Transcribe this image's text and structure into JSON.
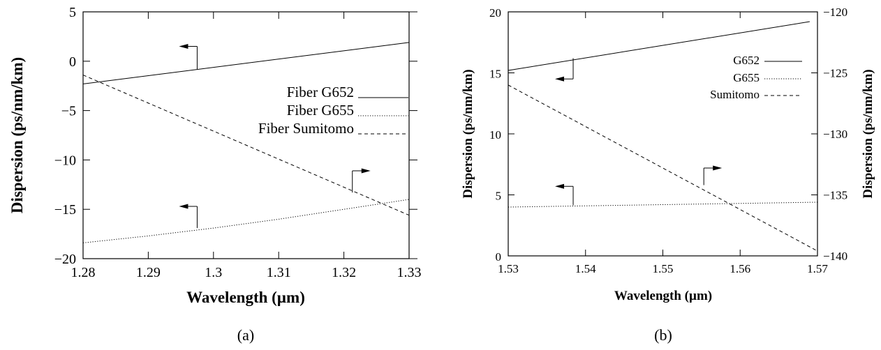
{
  "chart_data": [
    {
      "type": "line",
      "caption": "(a)",
      "xlabel": "Wavelength (µm)",
      "ylabel": "Dispersion (ps/nm/km)",
      "xlim": [
        1.28,
        1.33
      ],
      "ylim": [
        -20,
        5
      ],
      "xticks": [
        "1.28",
        "1.29",
        "1.3",
        "1.31",
        "1.32",
        "1.33"
      ],
      "yticks": [
        "5",
        "0",
        "−5",
        "−10",
        "−15",
        "−20"
      ],
      "grid": false,
      "legend_position": "right",
      "series": [
        {
          "name": "Fiber G652",
          "style": "solid",
          "x": [
            1.28,
            1.33
          ],
          "y": [
            -2.3,
            1.9
          ]
        },
        {
          "name": "Fiber G655",
          "style": "dotted",
          "x": [
            1.28,
            1.29,
            1.3,
            1.31,
            1.32,
            1.33
          ],
          "y": [
            -18.4,
            -17.7,
            -16.9,
            -16.0,
            -15.0,
            -14.0
          ]
        },
        {
          "name": "Fiber Sumitomo",
          "style": "dashed",
          "x": [
            1.28,
            1.33
          ],
          "y": [
            -1.4,
            -15.6
          ]
        }
      ],
      "annotations": [
        {
          "type": "axis-arrow",
          "direction": "left",
          "x": 1.2975,
          "y": -0.8,
          "ty": 1.5
        },
        {
          "type": "axis-arrow",
          "direction": "left",
          "x": 1.2975,
          "y": -16.9,
          "ty": -14.7
        },
        {
          "type": "axis-arrow",
          "direction": "right",
          "x": 1.3213,
          "y": -13.3,
          "ty": -11.1
        }
      ]
    },
    {
      "type": "line",
      "caption": "(b)",
      "xlabel": "Wavelength (µm)",
      "ylabel": "Dispersion (ps/nm/km)",
      "y2label": "Dispersion (ps/nm/km)",
      "xlim": [
        1.53,
        1.57
      ],
      "ylim": [
        0,
        20
      ],
      "y2lim": [
        -140,
        -120
      ],
      "xticks": [
        "1.53",
        "1.54",
        "1.55",
        "1.56",
        "1.57"
      ],
      "yticks": [
        "20",
        "15",
        "10",
        "5",
        "0"
      ],
      "y2ticks": [
        "−120",
        "−125",
        "−130",
        "−135",
        "−140"
      ],
      "grid": false,
      "legend_position": "top-right",
      "series": [
        {
          "name": "G652",
          "style": "solid",
          "axis": "left",
          "x": [
            1.53,
            1.569
          ],
          "y": [
            15.2,
            19.2
          ]
        },
        {
          "name": "G655",
          "style": "dotted",
          "axis": "left",
          "x": [
            1.53,
            1.57
          ],
          "y": [
            4.0,
            4.4
          ]
        },
        {
          "name": "Sumitomo",
          "style": "dashed",
          "axis": "right",
          "x": [
            1.53,
            1.57
          ],
          "y": [
            -126.0,
            -139.6
          ]
        }
      ],
      "annotations": [
        {
          "type": "axis-arrow",
          "direction": "left",
          "x": 1.5384,
          "y": 16.2,
          "ty": 14.5
        },
        {
          "type": "axis-arrow",
          "direction": "left",
          "x": 1.5384,
          "y": 4.15,
          "ty": 5.7
        },
        {
          "type": "axis-arrow",
          "direction": "right",
          "x": 1.5553,
          "y": 5.8,
          "ty": 7.2
        }
      ]
    }
  ]
}
